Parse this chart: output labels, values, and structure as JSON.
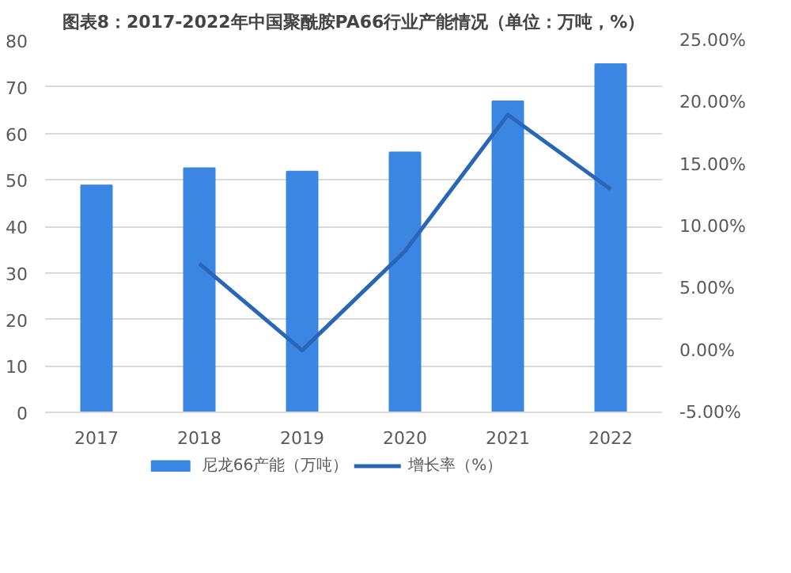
{
  "chart_data": {
    "type": "bar",
    "title": "图表8：2017-2022年中国聚酰胺PA66行业产能情况（单位：万吨，%）",
    "categories": [
      "2017",
      "2018",
      "2019",
      "2020",
      "2021",
      "2022"
    ],
    "series": [
      {
        "name": "尼龙66产能（万吨）",
        "color": "#3b86e3",
        "values": [
          48.8,
          52.5,
          51.8,
          55.9,
          66.9,
          74.9
        ]
      },
      {
        "name": "增长率（%）",
        "type": "line",
        "axis": "y2",
        "color": "#2a66b8",
        "values": [
          null,
          7.0,
          0.0,
          8.0,
          19.0,
          13.0
        ]
      }
    ],
    "ylim": [
      0,
      80
    ],
    "yticks": [
      0,
      10,
      20,
      30,
      40,
      50,
      60,
      70,
      80
    ],
    "y2lim": [
      -5,
      25
    ],
    "y2ticks": [
      {
        "value": -5,
        "label": "-5.00%"
      },
      {
        "value": 0,
        "label": "0.00%"
      },
      {
        "value": 5,
        "label": "5.00%"
      },
      {
        "value": 10,
        "label": "10.00%"
      },
      {
        "value": 15,
        "label": "15.00%"
      },
      {
        "value": 20,
        "label": "20.00%"
      },
      {
        "value": 25,
        "label": "25.00%"
      }
    ],
    "grid": "y",
    "legend": "bottom"
  }
}
